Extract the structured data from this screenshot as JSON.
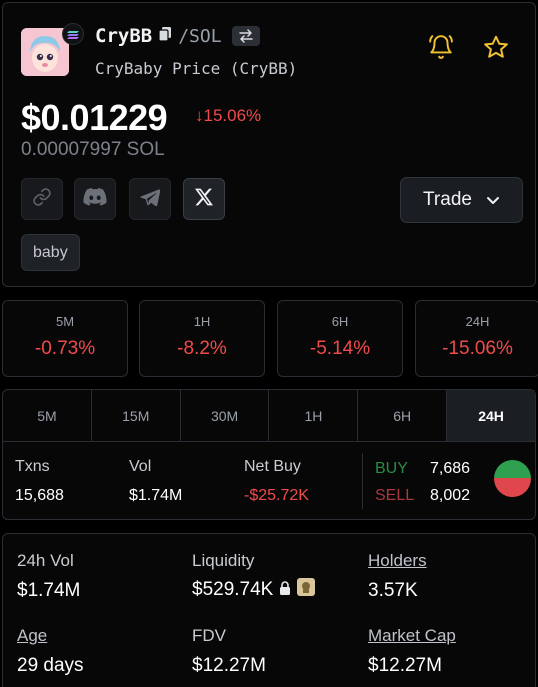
{
  "token": {
    "symbol": "CryBB",
    "pair": "/SOL",
    "subtitle": "CryBaby Price (CryBB)",
    "price": "$0.01229",
    "change": "↓15.06%",
    "sol_price": "0.00007997 SOL",
    "trade_label": "Trade",
    "tag": "baby"
  },
  "period_changes": [
    {
      "label": "5M",
      "value": "-0.73%"
    },
    {
      "label": "1H",
      "value": "-8.2%"
    },
    {
      "label": "6H",
      "value": "-5.14%"
    },
    {
      "label": "24H",
      "value": "-15.06%"
    }
  ],
  "tabs": [
    "5M",
    "15M",
    "30M",
    "1H",
    "6H",
    "24H"
  ],
  "active_tab": "24H",
  "stats": {
    "txns_label": "Txns",
    "txns": "15,688",
    "vol_label": "Vol",
    "vol": "$1.74M",
    "netbuy_label": "Net Buy",
    "netbuy": "-$25.72K",
    "buy_label": "BUY",
    "buy": "7,686",
    "sell_label": "SELL",
    "sell": "8,002",
    "buy_ratio": 0.49
  },
  "info": {
    "vol24_label": "24h Vol",
    "vol24": "$1.74M",
    "liquidity_label": "Liquidity",
    "liquidity": "$529.74K",
    "holders_label": "Holders",
    "holders": "3.57K",
    "age_label": "Age",
    "age": "29 days",
    "fdv_label": "FDV",
    "fdv": "$12.27M",
    "mcap_label": "Market Cap",
    "mcap": "$12.27M"
  },
  "colors": {
    "negative": "#f04b4b",
    "buy": "#2ea04f",
    "sell": "#e0474c",
    "accent_yellow": "#f2c230"
  },
  "icons": [
    "copy-icon",
    "swap-icon",
    "bell-icon",
    "star-icon",
    "link-icon",
    "discord-icon",
    "telegram-icon",
    "x-icon",
    "chevron-down-icon",
    "lock-icon"
  ]
}
